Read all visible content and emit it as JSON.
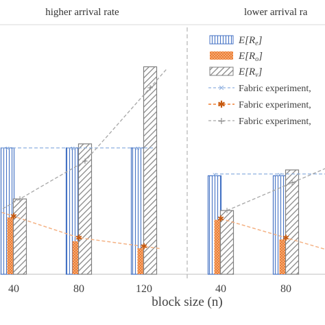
{
  "chart_data": {
    "type": "bar",
    "groups": [
      {
        "title": "higher arrival rate",
        "categories": [
          "40",
          "80",
          "120"
        ],
        "series": [
          {
            "key": "Re",
            "values": [
              218,
              218,
              218
            ]
          },
          {
            "key": "Ro",
            "values": [
              98,
              57,
              45
            ]
          },
          {
            "key": "Rv",
            "values": [
              130,
              225,
              358
            ]
          }
        ],
        "experiment": [
          {
            "key": "Re",
            "values": [
              218,
              218,
              218
            ]
          },
          {
            "key": "Ro",
            "values": [
              100,
              63,
              48
            ]
          },
          {
            "key": "Rv",
            "values": [
              130,
              195,
              322
            ]
          }
        ]
      },
      {
        "title": "lower arrival ra",
        "categories": [
          "40",
          "80"
        ],
        "series": [
          {
            "key": "Re",
            "values": [
              170,
              170
            ]
          },
          {
            "key": "Ro",
            "values": [
              94,
              60
            ]
          },
          {
            "key": "Rv",
            "values": [
              110,
              180
            ]
          }
        ],
        "experiment": [
          {
            "key": "Re",
            "values": [
              173,
              173
            ]
          },
          {
            "key": "Ro",
            "values": [
              96,
              63
            ]
          },
          {
            "key": "Rv",
            "values": [
              110,
              158
            ]
          }
        ]
      }
    ],
    "xlabel": "block size (n)",
    "ylim": [
      0,
      420
    ],
    "legend": {
      "position": "top-right",
      "entries": [
        {
          "key": "Re",
          "label": "E[Re]",
          "sym": "R",
          "sub": "e",
          "style": "vertical-stripes"
        },
        {
          "key": "Ro",
          "label": "E[Ro]",
          "sym": "R",
          "sub": "o",
          "style": "dotted-orange"
        },
        {
          "key": "Rv",
          "label": "E[Rv]",
          "sym": "R",
          "sub": "v",
          "style": "diagonal-hatch"
        },
        {
          "key": "Re-exp",
          "label": "Fabric experiment,",
          "style": "dashed-blue-x"
        },
        {
          "key": "Ro-exp",
          "label": "Fabric experiment,",
          "style": "dashed-orange-star"
        },
        {
          "key": "Rv-exp",
          "label": "Fabric experiment,",
          "style": "dashed-gray-plus"
        }
      ]
    },
    "colors": {
      "Re": "#4472c4",
      "Ro": "#ed7d31",
      "Rv": "#7f7f7f",
      "ReLine": "#8fb0e0",
      "RoLine": "#f4b183",
      "RvLine": "#a6a6a6",
      "axis": "#bfbfbf",
      "divider": "#a6a6a6",
      "text": "#404040"
    }
  }
}
